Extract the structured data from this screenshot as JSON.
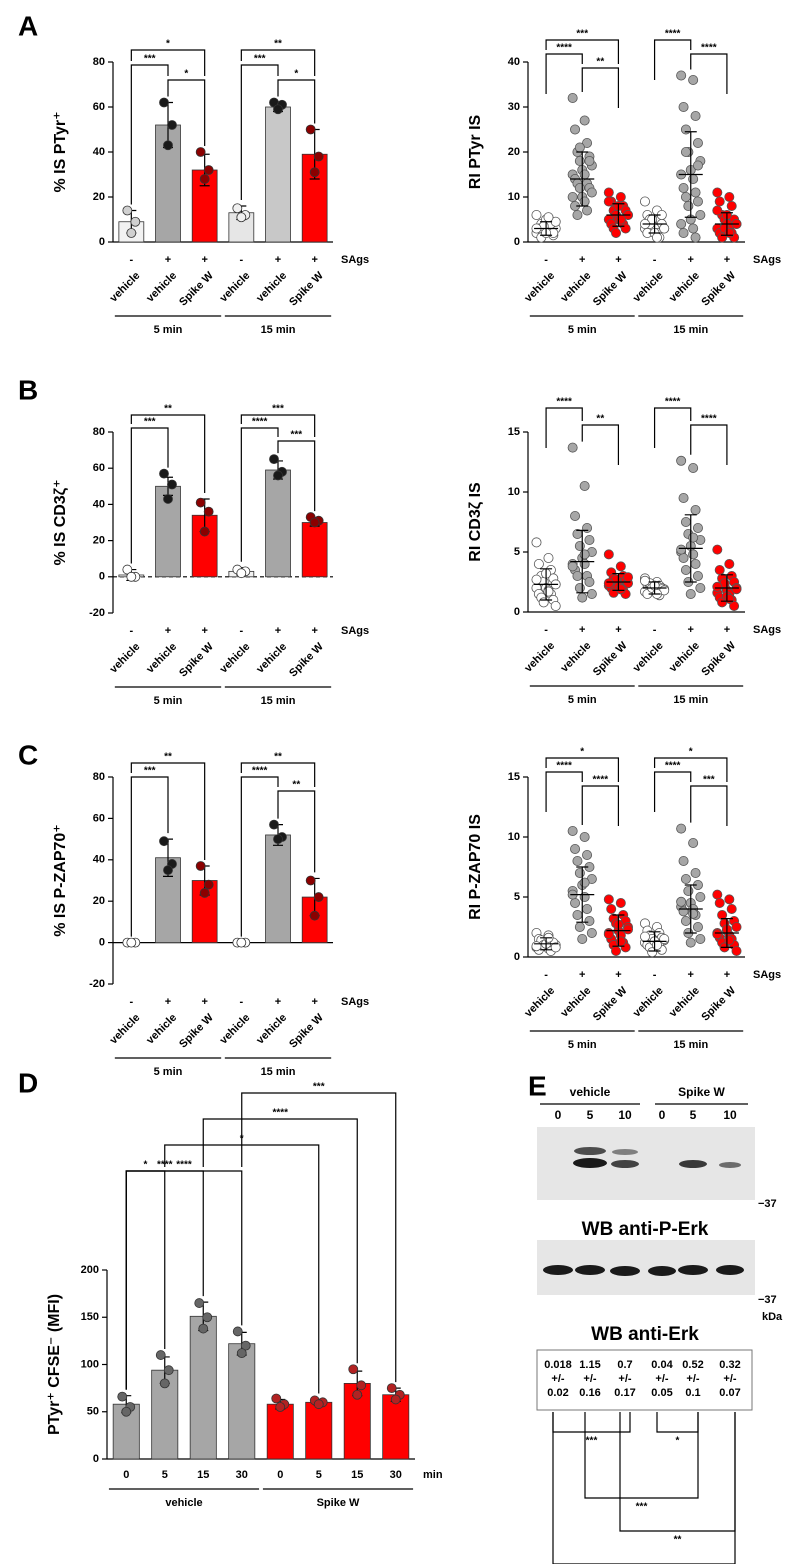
{
  "chart_data": [
    {
      "type": "bar",
      "panel": "A",
      "ylabel": "% IS PTyr⁺",
      "categories": [
        "vehicle",
        "vehicle",
        "Spike W",
        "vehicle",
        "vehicle",
        "Spike W"
      ],
      "sags": [
        "-",
        "+",
        "+",
        "-",
        "+",
        "+"
      ],
      "sags_label": "SAgs",
      "groups": [
        "5 min",
        "15 min"
      ],
      "values": [
        9,
        52,
        32,
        13,
        60,
        39
      ],
      "errors": [
        5,
        10,
        7,
        3,
        2,
        11
      ],
      "points": [
        [
          14,
          9,
          4
        ],
        [
          62,
          52,
          43
        ],
        [
          40,
          32,
          28
        ],
        [
          15,
          12,
          11
        ],
        [
          62,
          61,
          59
        ],
        [
          50,
          38,
          31
        ]
      ],
      "colors": [
        "#f2f2f2",
        "#a6a6a6",
        "#ff0000",
        "#e6e6e6",
        "#c8c8c8",
        "#ff0000"
      ],
      "point_colors": [
        "#d0d0d0",
        "#1a1a1a",
        "#8b0000",
        "#f0f0f0",
        "#1a1a1a",
        "#8b0000"
      ],
      "ylim": [
        0,
        80
      ],
      "yticks": [
        0,
        20,
        40,
        60,
        80
      ],
      "significance": [
        {
          "label": "*",
          "from": 0,
          "to": 2
        },
        {
          "label": "***",
          "from": 0,
          "to": 1
        },
        {
          "label": "*",
          "from": 1,
          "to": 2
        },
        {
          "label": "**",
          "from": 3,
          "to": 5
        },
        {
          "label": "***",
          "from": 3,
          "to": 4
        },
        {
          "label": "*",
          "from": 4,
          "to": 5
        }
      ]
    },
    {
      "type": "strip",
      "ylabel": "RI PTyr IS",
      "categories": [
        "vehicle",
        "vehicle",
        "Spike W",
        "vehicle",
        "vehicle",
        "Spike W"
      ],
      "sags": [
        "-",
        "+",
        "+",
        "-",
        "+",
        "+"
      ],
      "sags_label": "SAgs",
      "groups": [
        "5 min",
        "15 min"
      ],
      "values": [
        3,
        14,
        6,
        4,
        15,
        4
      ],
      "errors": [
        1.5,
        6,
        2.5,
        2,
        9.5,
        2.5
      ],
      "points": [
        [
          2,
          2.5,
          3,
          3.5,
          4,
          1.5,
          2,
          3,
          5,
          6,
          2.5,
          3,
          4,
          1,
          2,
          3.5,
          4.5,
          2,
          3,
          5.5
        ],
        [
          32,
          27,
          25,
          22,
          20,
          19,
          18,
          17,
          16,
          15,
          15,
          14,
          13,
          13,
          12,
          12,
          11,
          10,
          10,
          9,
          8,
          7,
          6,
          18,
          21
        ],
        [
          11,
          10,
          9,
          8,
          7,
          7,
          6,
          6,
          5,
          5,
          5,
          4,
          4,
          3,
          3,
          2,
          6,
          8,
          9,
          5
        ],
        [
          9,
          7,
          6,
          5,
          5,
          4,
          4,
          3,
          3,
          3,
          2,
          2,
          1,
          4,
          6,
          5,
          3,
          2,
          4,
          1
        ],
        [
          37,
          36,
          30,
          28,
          25,
          22,
          20,
          18,
          16,
          15,
          14,
          12,
          11,
          10,
          9,
          8,
          6,
          5,
          4,
          3,
          2,
          1,
          20,
          17
        ],
        [
          11,
          10,
          9,
          8,
          6,
          5,
          5,
          4,
          4,
          3,
          3,
          2,
          2,
          1,
          1,
          3,
          4,
          6,
          7,
          2
        ]
      ],
      "colors": [
        "#ffffff",
        "#a6a6a6",
        "#ff0000",
        "#ffffff",
        "#a6a6a6",
        "#ff0000"
      ],
      "ylim": [
        0,
        40
      ],
      "yticks": [
        0,
        10,
        20,
        30,
        40
      ],
      "significance": [
        {
          "label": "***",
          "from": 0,
          "to": 2
        },
        {
          "label": "****",
          "from": 0,
          "to": 1
        },
        {
          "label": "**",
          "from": 1,
          "to": 2
        },
        {
          "label": "****",
          "from": 3,
          "to": 4
        },
        {
          "label": "****",
          "from": 4,
          "to": 5
        }
      ]
    },
    {
      "type": "bar",
      "panel": "B",
      "ylabel": "% IS CD3ζ⁺",
      "baseline": "dashed",
      "categories": [
        "vehicle",
        "vehicle",
        "Spike W",
        "vehicle",
        "vehicle",
        "Spike W"
      ],
      "sags": [
        "-",
        "+",
        "+",
        "-",
        "+",
        "+"
      ],
      "sags_label": "SAgs",
      "groups": [
        "5 min",
        "15 min"
      ],
      "values": [
        1,
        50,
        34,
        3,
        59,
        30
      ],
      "errors": [
        3,
        5,
        9,
        2,
        5,
        2
      ],
      "points": [
        [
          4,
          0,
          0
        ],
        [
          57,
          51,
          43
        ],
        [
          41,
          36,
          25
        ],
        [
          4,
          3,
          2
        ],
        [
          65,
          58,
          56
        ],
        [
          33,
          31,
          30
        ]
      ],
      "colors": [
        "#ffffff",
        "#a6a6a6",
        "#ff0000",
        "#f2f2f2",
        "#a6a6a6",
        "#ff0000"
      ],
      "point_colors": [
        "#ffffff",
        "#1a1a1a",
        "#8b0000",
        "#ffffff",
        "#1a1a1a",
        "#8b0000"
      ],
      "ylim": [
        -20,
        80
      ],
      "yticks": [
        -20,
        0,
        20,
        40,
        60,
        80
      ],
      "significance": [
        {
          "label": "**",
          "from": 0,
          "to": 2
        },
        {
          "label": "***",
          "from": 0,
          "to": 1
        },
        {
          "label": "***",
          "from": 3,
          "to": 5
        },
        {
          "label": "****",
          "from": 3,
          "to": 4
        },
        {
          "label": "***",
          "from": 4,
          "to": 5
        }
      ]
    },
    {
      "type": "strip",
      "ylabel": "RI CD3ζ IS",
      "categories": [
        "vehicle",
        "vehicle",
        "Spike W",
        "vehicle",
        "vehicle",
        "Spike W"
      ],
      "sags": [
        "-",
        "+",
        "+",
        "-",
        "+",
        "+"
      ],
      "sags_label": "SAgs",
      "groups": [
        "5 min",
        "15 min"
      ],
      "values": [
        2.3,
        4.2,
        2.5,
        2,
        5.3,
        2
      ],
      "errors": [
        1.3,
        2.6,
        0.7,
        0.5,
        2.8,
        1.1
      ],
      "points": [
        [
          5.8,
          4.5,
          4,
          3.5,
          3,
          2.8,
          2.5,
          2.3,
          2,
          2,
          1.8,
          1.5,
          1.5,
          1.2,
          1,
          0.8,
          0.5,
          3.2,
          2.7,
          1.7
        ],
        [
          13.7,
          10.5,
          8,
          7,
          6.5,
          6,
          5.5,
          5,
          4.5,
          4,
          4,
          3.5,
          3,
          3,
          2.5,
          2,
          1.5,
          1.2,
          3.8,
          4.8
        ],
        [
          4.8,
          3.8,
          3.3,
          3,
          2.8,
          2.6,
          2.5,
          2.4,
          2.3,
          2.2,
          2,
          2,
          1.8,
          1.6,
          1.5,
          2.7,
          2.9,
          2.1,
          2.4,
          1.9
        ],
        [
          2.8,
          2.5,
          2.3,
          2.2,
          2.1,
          2,
          2,
          1.9,
          1.8,
          1.7,
          1.6,
          1.5,
          1.4,
          2.4,
          1.9,
          2,
          1.8,
          2.2,
          2.6,
          1.5
        ],
        [
          12.6,
          12,
          9.5,
          8.5,
          7.5,
          7,
          6.5,
          6,
          5.5,
          5,
          4.8,
          4.5,
          4,
          3.5,
          3,
          2.5,
          2,
          1.5,
          5.2,
          6.2
        ],
        [
          5.2,
          4,
          3.5,
          3,
          2.8,
          2.5,
          2.2,
          2,
          1.8,
          1.6,
          1.5,
          1.2,
          1,
          0.8,
          0.5,
          2.4,
          1.9,
          1.3,
          2.1,
          1.1
        ]
      ],
      "colors": [
        "#ffffff",
        "#a6a6a6",
        "#ff0000",
        "#ffffff",
        "#a6a6a6",
        "#ff0000"
      ],
      "ylim": [
        0,
        15
      ],
      "yticks": [
        0,
        5,
        10,
        15
      ],
      "significance": [
        {
          "label": "****",
          "from": 0,
          "to": 1
        },
        {
          "label": "**",
          "from": 1,
          "to": 2
        },
        {
          "label": "****",
          "from": 3,
          "to": 4
        },
        {
          "label": "****",
          "from": 4,
          "to": 5
        }
      ]
    },
    {
      "type": "bar",
      "panel": "C",
      "ylabel": "% IS P-ZAP70⁺",
      "categories": [
        "vehicle",
        "vehicle",
        "Spike W",
        "vehicle",
        "vehicle",
        "Spike W"
      ],
      "sags": [
        "-",
        "+",
        "+",
        "-",
        "+",
        "+"
      ],
      "sags_label": "SAgs",
      "groups": [
        "5 min",
        "15 min"
      ],
      "values": [
        0,
        41,
        30,
        0,
        52,
        22
      ],
      "errors": [
        0,
        9,
        7,
        0,
        5,
        9
      ],
      "points": [
        [
          0,
          0,
          0
        ],
        [
          49,
          38,
          35
        ],
        [
          37,
          28,
          24
        ],
        [
          0,
          0,
          0
        ],
        [
          57,
          51,
          50
        ],
        [
          30,
          22,
          13
        ]
      ],
      "colors": [
        "#ffffff",
        "#a6a6a6",
        "#ff0000",
        "#ffffff",
        "#a6a6a6",
        "#ff0000"
      ],
      "point_colors": [
        "#ffffff",
        "#1a1a1a",
        "#8b0000",
        "#ffffff",
        "#1a1a1a",
        "#8b0000"
      ],
      "ylim": [
        -20,
        80
      ],
      "yticks": [
        -20,
        0,
        20,
        40,
        60,
        80
      ],
      "significance": [
        {
          "label": "**",
          "from": 0,
          "to": 2
        },
        {
          "label": "***",
          "from": 0,
          "to": 1
        },
        {
          "label": "**",
          "from": 3,
          "to": 5
        },
        {
          "label": "****",
          "from": 3,
          "to": 4
        },
        {
          "label": "**",
          "from": 4,
          "to": 5
        }
      ]
    },
    {
      "type": "strip",
      "ylabel": "RI P-ZAP70 IS",
      "categories": [
        "vehicle",
        "vehicle",
        "Spike W",
        "vehicle",
        "vehicle",
        "Spike W"
      ],
      "sags": [
        "-",
        "+",
        "+",
        "-",
        "+",
        "+"
      ],
      "sags_label": "SAgs",
      "groups": [
        "5 min",
        "15 min"
      ],
      "values": [
        1.1,
        5.2,
        2.2,
        1.3,
        4,
        2
      ],
      "errors": [
        0.5,
        2.3,
        1.3,
        0.8,
        2,
        1.2
      ],
      "points": [
        [
          2,
          1.8,
          1.5,
          1.3,
          1.2,
          1.1,
          1,
          1,
          0.9,
          0.8,
          0.7,
          0.6,
          0.5,
          1.4,
          1.2,
          1,
          0.8,
          1.1,
          0.9,
          1.6
        ],
        [
          10.5,
          10,
          9,
          8.5,
          8,
          7.5,
          7,
          6.5,
          6,
          5.5,
          5,
          4.5,
          4,
          3.5,
          3,
          2.5,
          2,
          1.5,
          5.2,
          6.2
        ],
        [
          4.8,
          4.5,
          4,
          3.5,
          3.2,
          3,
          2.8,
          2.5,
          2.2,
          2,
          1.8,
          1.5,
          1.2,
          1,
          0.8,
          0.5,
          2.3,
          2.7,
          1.9,
          1.3
        ],
        [
          2.8,
          2.5,
          2.2,
          2,
          1.8,
          1.6,
          1.5,
          1.4,
          1.3,
          1.2,
          1.1,
          1,
          0.9,
          0.8,
          0.6,
          0.4,
          1.5,
          1.3,
          1.7,
          1
        ],
        [
          10.7,
          9.5,
          8,
          7,
          6.5,
          6,
          5.5,
          5,
          4.5,
          4.2,
          4,
          3.8,
          3.5,
          3,
          2.5,
          2,
          1.5,
          1.2,
          4.6,
          3.6
        ],
        [
          5.2,
          4.8,
          4.5,
          4,
          3.5,
          3,
          2.8,
          2.5,
          2.2,
          2,
          1.8,
          1.6,
          1.5,
          1.2,
          1,
          0.8,
          0.5,
          2.3,
          1.9,
          1.4
        ]
      ],
      "colors": [
        "#ffffff",
        "#a6a6a6",
        "#ff0000",
        "#ffffff",
        "#a6a6a6",
        "#ff0000"
      ],
      "ylim": [
        0,
        15
      ],
      "yticks": [
        0,
        5,
        10,
        15
      ],
      "significance": [
        {
          "label": "*",
          "from": 0,
          "to": 2
        },
        {
          "label": "****",
          "from": 0,
          "to": 1
        },
        {
          "label": "****",
          "from": 1,
          "to": 2
        },
        {
          "label": "*",
          "from": 3,
          "to": 5
        },
        {
          "label": "****",
          "from": 3,
          "to": 4
        },
        {
          "label": "***",
          "from": 4,
          "to": 5
        }
      ]
    },
    {
      "type": "bar",
      "panel": "D",
      "ylabel": "PTyr⁺ CFSE⁻ (MFI)",
      "categories": [
        "0",
        "5",
        "15",
        "30",
        "0",
        "5",
        "15",
        "30"
      ],
      "unit": "min",
      "groups": [
        "vehicle",
        "Spike W"
      ],
      "values": [
        58,
        94,
        151,
        122,
        58,
        60,
        80,
        68
      ],
      "errors": [
        9,
        14,
        15,
        12,
        5,
        3,
        13,
        7
      ],
      "points": [
        [
          66,
          55,
          50
        ],
        [
          110,
          94,
          80
        ],
        [
          165,
          150,
          138
        ],
        [
          135,
          120,
          112
        ],
        [
          64,
          58,
          55
        ],
        [
          62,
          60,
          58
        ],
        [
          95,
          78,
          68
        ],
        [
          75,
          68,
          63
        ]
      ],
      "colors": [
        "#a6a6a6",
        "#a6a6a6",
        "#a6a6a6",
        "#a6a6a6",
        "#ff0000",
        "#ff0000",
        "#ff0000",
        "#ff0000"
      ],
      "point_colors": [
        "#666666",
        "#666666",
        "#666666",
        "#666666",
        "#b22222",
        "#b22222",
        "#b22222",
        "#b22222"
      ],
      "ylim": [
        0,
        200
      ],
      "yticks": [
        0,
        50,
        100,
        150,
        200
      ],
      "significance": [
        {
          "label": "***",
          "from": 3,
          "to": 7
        },
        {
          "label": "****",
          "from": 2,
          "to": 6
        },
        {
          "label": "*",
          "from": 1,
          "to": 5
        },
        {
          "label": "****",
          "from": 0,
          "to": 3
        },
        {
          "label": "****",
          "from": 0,
          "to": 2
        },
        {
          "label": "*",
          "from": 0,
          "to": 1
        }
      ]
    }
  ],
  "blot": {
    "panel": "E",
    "groups": [
      "vehicle",
      "Spike W"
    ],
    "lanes": [
      "0",
      "5",
      "10",
      "0",
      "5",
      "10"
    ],
    "marker": "−37",
    "units": "kDa",
    "titles": [
      "WB anti-P-Erk",
      "WB anti-Erk"
    ],
    "quant": {
      "mean": [
        0.018,
        1.15,
        0.7,
        0.04,
        0.52,
        0.32
      ],
      "pm": "+/-",
      "sd": [
        0.02,
        0.16,
        0.17,
        0.05,
        0.1,
        0.07
      ]
    },
    "significance": [
      {
        "label": "***",
        "from": 0,
        "to": 2
      },
      {
        "label": "*",
        "from": 3,
        "to": 4
      },
      {
        "label": "***",
        "from": 1,
        "to": 4
      },
      {
        "label": "**",
        "from": 2,
        "to": 5
      },
      {
        "label": "**",
        "from": 0,
        "to": 5
      }
    ]
  }
}
